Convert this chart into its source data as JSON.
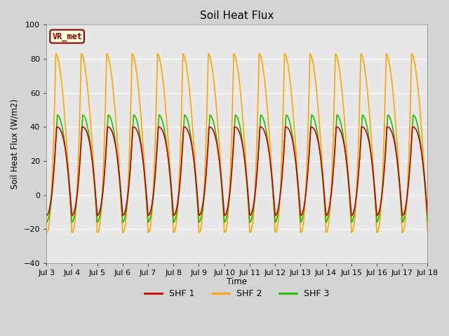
{
  "title": "Soil Heat Flux",
  "ylabel": "Soil Heat Flux (W/m2)",
  "xlabel": "Time",
  "ylim": [
    -40,
    100
  ],
  "yticks": [
    -40,
    -20,
    0,
    20,
    40,
    60,
    80,
    100
  ],
  "fig_bg_color": "#d4d4d4",
  "plot_bg_color": "#e8e8e8",
  "shf1_color": "#cc0000",
  "shf2_color": "#ffa500",
  "shf3_color": "#22bb00",
  "legend_label1": "SHF 1",
  "legend_label2": "SHF 2",
  "legend_label3": "SHF 3",
  "watermark_text": "VR_met",
  "n_days": 15,
  "xtick_labels": [
    "Jul 3",
    "Jul 4",
    "Jul 5",
    "Jul 6",
    "Jul 7",
    "Jul 8",
    "Jul 9",
    "Jul 10",
    "Jul 11",
    "Jul 12",
    "Jul 13",
    "Jul 14",
    "Jul 15",
    "Jul 16",
    "Jul 17",
    "Jul 18"
  ],
  "line_width": 1.2
}
